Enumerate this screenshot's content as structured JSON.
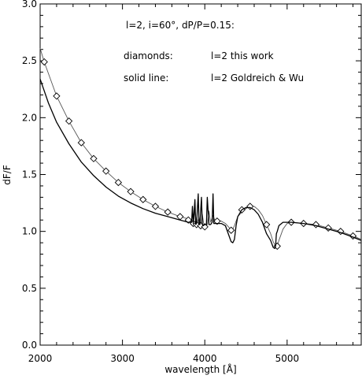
{
  "chart_data": {
    "type": "line",
    "title": "",
    "xlabel": "wavelength [Å]",
    "ylabel": "dF/F",
    "xlim": [
      2000,
      5900
    ],
    "ylim": [
      0.0,
      3.0
    ],
    "x_ticks": [
      2000,
      3000,
      4000,
      5000
    ],
    "y_ticks": [
      0.0,
      0.5,
      1.0,
      1.5,
      2.0,
      2.5,
      3.0
    ],
    "x_tick_labels": [
      "2000",
      "3000",
      "4000",
      "5000"
    ],
    "y_tick_labels": [
      "0.0",
      "0.5",
      "1.0",
      "1.5",
      "2.0",
      "2.5",
      "3.0"
    ],
    "grid": false,
    "annotations": [
      "l=2, i=60°, dP/P=0.15:",
      "diamonds:",
      "l=2 this work",
      "solid line:",
      "l=2 Goldreich & Wu"
    ],
    "series": [
      {
        "name": "l=2 this work",
        "style": "thin line with diamond markers",
        "color": "#555555",
        "x": [
          2000,
          2050,
          2200,
          2350,
          2500,
          2650,
          2800,
          2950,
          3100,
          3250,
          3400,
          3550,
          3700,
          3800,
          3860,
          3880,
          3900,
          3930,
          3950,
          3970,
          3990,
          4000,
          4030,
          4050,
          4070,
          4100,
          4120,
          4150,
          4200,
          4250,
          4300,
          4320,
          4340,
          4360,
          4400,
          4450,
          4500,
          4550,
          4600,
          4650,
          4700,
          4750,
          4800,
          4830,
          4860,
          4880,
          4900,
          4950,
          5000,
          5050,
          5200,
          5350,
          5500,
          5650,
          5800,
          5900
        ],
        "y": [
          2.61,
          2.49,
          2.19,
          1.97,
          1.78,
          1.64,
          1.53,
          1.43,
          1.35,
          1.28,
          1.22,
          1.17,
          1.13,
          1.11,
          1.07,
          1.18,
          1.06,
          1.12,
          1.05,
          1.15,
          1.05,
          1.04,
          1.06,
          1.18,
          1.08,
          1.14,
          1.1,
          1.1,
          1.09,
          1.07,
          1.03,
          1.01,
          1.02,
          1.05,
          1.13,
          1.17,
          1.2,
          1.22,
          1.22,
          1.19,
          1.14,
          1.06,
          0.98,
          0.91,
          0.87,
          0.87,
          0.92,
          1.02,
          1.07,
          1.08,
          1.07,
          1.06,
          1.03,
          1.0,
          0.96,
          0.93
        ],
        "markers_x": [
          2050,
          2200,
          2350,
          2500,
          2650,
          2800,
          2950,
          3100,
          3250,
          3400,
          3550,
          3700,
          3800,
          3860,
          3900,
          3950,
          4000,
          4150,
          4320,
          4450,
          4550,
          4750,
          4880,
          5050,
          5200,
          5350,
          5500,
          5650,
          5800
        ],
        "markers_y": [
          2.49,
          2.19,
          1.97,
          1.78,
          1.64,
          1.53,
          1.43,
          1.35,
          1.28,
          1.22,
          1.17,
          1.13,
          1.1,
          1.07,
          1.06,
          1.05,
          1.04,
          1.09,
          1.01,
          1.19,
          1.22,
          1.06,
          0.87,
          1.08,
          1.07,
          1.06,
          1.03,
          1.0,
          0.96
        ]
      },
      {
        "name": "l=2 Goldreich & Wu",
        "style": "solid line",
        "color": "#000000",
        "x": [
          2000,
          2100,
          2200,
          2350,
          2500,
          2650,
          2800,
          2950,
          3100,
          3250,
          3400,
          3550,
          3700,
          3800,
          3840,
          3850,
          3860,
          3880,
          3890,
          3900,
          3920,
          3930,
          3940,
          3960,
          3970,
          3980,
          4000,
          4020,
          4030,
          4050,
          4070,
          4090,
          4100,
          4110,
          4130,
          4150,
          4200,
          4250,
          4300,
          4320,
          4340,
          4360,
          4380,
          4400,
          4450,
          4500,
          4550,
          4600,
          4650,
          4700,
          4750,
          4800,
          4830,
          4850,
          4860,
          4870,
          4880,
          4900,
          4950,
          5000,
          5050,
          5200,
          5350,
          5500,
          5650,
          5800,
          5900
        ],
        "y": [
          2.34,
          2.13,
          1.96,
          1.77,
          1.61,
          1.49,
          1.39,
          1.31,
          1.25,
          1.2,
          1.16,
          1.13,
          1.1,
          1.08,
          1.08,
          1.22,
          1.07,
          1.28,
          1.06,
          1.07,
          1.33,
          1.06,
          1.06,
          1.3,
          1.06,
          1.05,
          1.06,
          1.06,
          1.3,
          1.06,
          1.06,
          1.08,
          1.33,
          1.07,
          1.07,
          1.07,
          1.07,
          1.05,
          0.95,
          0.91,
          0.9,
          0.93,
          1.05,
          1.13,
          1.19,
          1.21,
          1.21,
          1.19,
          1.15,
          1.08,
          0.98,
          0.92,
          0.86,
          0.85,
          0.87,
          0.98,
          1.0,
          1.05,
          1.08,
          1.08,
          1.08,
          1.07,
          1.05,
          1.02,
          0.99,
          0.95,
          0.92
        ]
      }
    ]
  }
}
